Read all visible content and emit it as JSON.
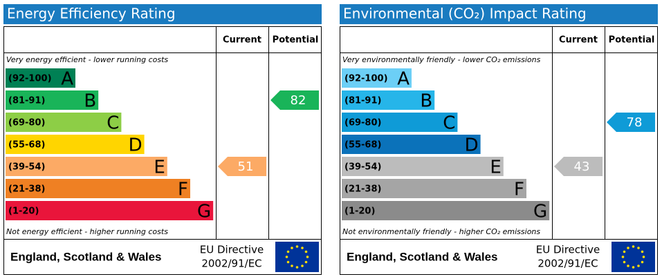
{
  "chart_data": [
    {
      "type": "epc",
      "title": "Energy Efficiency Rating",
      "column_headers": [
        "Current",
        "Potential"
      ],
      "top_note": "Very energy efficient - lower running costs",
      "bottom_note": "Not energy efficient - higher running costs",
      "bands": [
        {
          "range": "(92-100)",
          "letter": "A",
          "color": "#008054"
        },
        {
          "range": "(81-91)",
          "letter": "B",
          "color": "#19b459"
        },
        {
          "range": "(69-80)",
          "letter": "C",
          "color": "#8dce46"
        },
        {
          "range": "(55-68)",
          "letter": "D",
          "color": "#ffd500"
        },
        {
          "range": "(39-54)",
          "letter": "E",
          "color": "#fcaa65"
        },
        {
          "range": "(21-38)",
          "letter": "F",
          "color": "#ef8023"
        },
        {
          "range": "(1-20)",
          "letter": "G",
          "color": "#e9153b"
        }
      ],
      "current": 51,
      "potential": 82,
      "footer": "England, Scotland & Wales",
      "directive": [
        "EU Directive",
        "2002/91/EC"
      ]
    },
    {
      "type": "epc",
      "title": "Environmental (CO₂) Impact Rating",
      "column_headers": [
        "Current",
        "Potential"
      ],
      "top_note": "Very environmentally friendly - lower CO₂ emissions",
      "bottom_note": "Not environmentally friendly - higher CO₂ emissions",
      "bands": [
        {
          "range": "(92-100)",
          "letter": "A",
          "color": "#6ccff6"
        },
        {
          "range": "(81-91)",
          "letter": "B",
          "color": "#26b5e9"
        },
        {
          "range": "(69-80)",
          "letter": "C",
          "color": "#0f9bd7"
        },
        {
          "range": "(55-68)",
          "letter": "D",
          "color": "#0b72ba"
        },
        {
          "range": "(39-54)",
          "letter": "E",
          "color": "#bcbcbc"
        },
        {
          "range": "(21-38)",
          "letter": "F",
          "color": "#a5a5a5"
        },
        {
          "range": "(1-20)",
          "letter": "G",
          "color": "#8b8b8b"
        }
      ],
      "current": 43,
      "potential": 78,
      "footer": "England, Scotland & Wales",
      "directive": [
        "EU Directive",
        "2002/91/EC"
      ]
    }
  ]
}
